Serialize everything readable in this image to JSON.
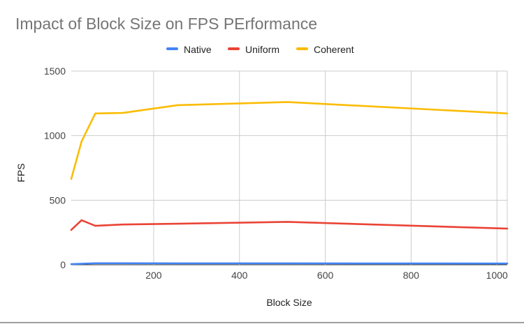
{
  "chart_data": {
    "type": "line",
    "title": "Impact of Block Size  on FPS PErformance",
    "xlabel": "Block Size",
    "ylabel": "FPS",
    "xlim": [
      8,
      1024
    ],
    "ylim": [
      0,
      1500
    ],
    "xticks": [
      200,
      400,
      600,
      800,
      1000
    ],
    "yticks": [
      0,
      500,
      1000,
      1500
    ],
    "x_tick_labels": [
      "200",
      "400",
      "600",
      "800",
      "1000"
    ],
    "y_tick_labels": [
      "0",
      "500",
      "1000",
      "1500"
    ],
    "grid": true,
    "legend": "top",
    "x": [
      8,
      32,
      64,
      128,
      256,
      512,
      1024
    ],
    "series": [
      {
        "name": "Native",
        "color": "#4285f4",
        "values": [
          5,
          8,
          12,
          12,
          11,
          11,
          10
        ]
      },
      {
        "name": "Uniform",
        "color": "#ea4335",
        "values": [
          270,
          345,
          302,
          312,
          318,
          332,
          280
        ]
      },
      {
        "name": "Coherent",
        "color": "#fbbc04",
        "values": [
          665,
          955,
          1172,
          1176,
          1236,
          1260,
          1172
        ]
      }
    ]
  }
}
